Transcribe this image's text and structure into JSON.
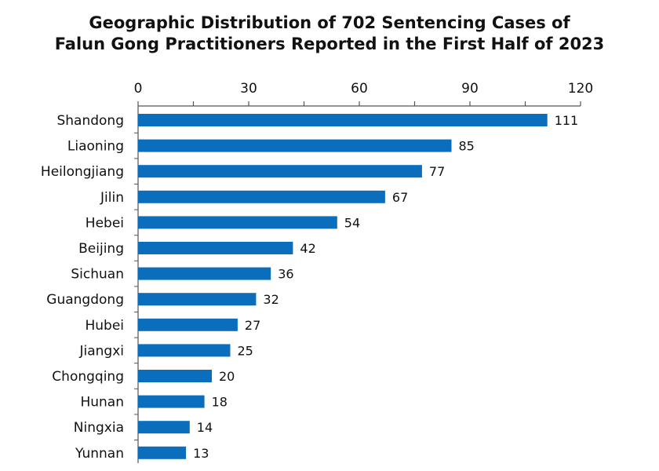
{
  "chart_data": {
    "type": "bar",
    "orientation": "horizontal",
    "title": "Geographic Distribution of 702 Sentencing Cases of Falun Gong Practitioners Reported in the First Half of 2023",
    "title_lines": [
      "Geographic Distribution of 702 Sentencing Cases of",
      "Falun Gong Practitioners Reported in the First Half of 2023"
    ],
    "xlabel": "",
    "ylabel": "",
    "xlim": [
      0,
      120
    ],
    "xticks": [
      "0",
      "30",
      "60",
      "90",
      "120"
    ],
    "xtick_values": [
      0,
      30,
      60,
      90,
      120
    ],
    "axis_position": "top",
    "grid": false,
    "legend": "none",
    "categories": [
      "Shandong",
      "Liaoning",
      "Heilongjiang",
      "Jilin",
      "Hebei",
      "Beijing",
      "Sichuan",
      "Guangdong",
      "Hubei",
      "Jiangxi",
      "Chongqing",
      "Hunan",
      "Ningxia",
      "Yunnan"
    ],
    "values": [
      111,
      85,
      77,
      67,
      54,
      42,
      36,
      32,
      27,
      25,
      20,
      18,
      14,
      13
    ],
    "value_labels": [
      "111",
      "85",
      "77",
      "67",
      "54",
      "42",
      "36",
      "32",
      "27",
      "25",
      "20",
      "18",
      "14",
      "13"
    ],
    "bar_color": "#0a6ebd",
    "axis_color": "#555555"
  }
}
